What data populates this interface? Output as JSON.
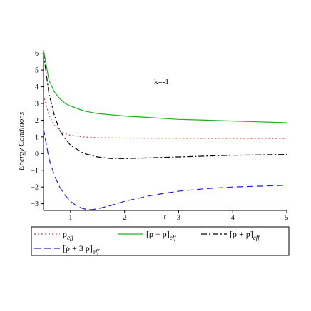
{
  "chart_data": {
    "type": "line",
    "title": "",
    "xlabel": "t",
    "ylabel": "Energy Conditions",
    "annotation": "k=-1",
    "xlim": [
      0.5,
      5
    ],
    "ylim": [
      -3.4,
      6.2
    ],
    "x_ticks": [
      1,
      2,
      3,
      4,
      5
    ],
    "y_ticks": [
      -3,
      -2,
      -1,
      0,
      1,
      2,
      3,
      4,
      5,
      6
    ],
    "grid": false,
    "legend_position": "bottom",
    "series": [
      {
        "name": "ρ_eff",
        "legend_main": "ρ",
        "legend_sub": "eff",
        "color": "#d04040",
        "dash": "dotted",
        "x": [
          0.5,
          0.6,
          0.7,
          0.8,
          0.9,
          1.0,
          1.25,
          1.5,
          2.0,
          2.5,
          3.0,
          3.5,
          4.0,
          4.5,
          5.0
        ],
        "y": [
          3.5,
          2.3,
          1.7,
          1.4,
          1.2,
          1.1,
          1.0,
          0.95,
          0.93,
          0.92,
          0.92,
          0.91,
          0.91,
          0.9,
          0.9
        ]
      },
      {
        "name": "[ρ − p]_eff",
        "legend_main": "[ρ − p]",
        "legend_sub": "eff",
        "color": "#20b020",
        "dash": "solid",
        "x": [
          0.5,
          0.6,
          0.7,
          0.8,
          0.9,
          1.0,
          1.25,
          1.5,
          2.0,
          2.5,
          3.0,
          3.5,
          4.0,
          4.5,
          5.0
        ],
        "y": [
          6.2,
          4.4,
          3.7,
          3.3,
          3.0,
          2.85,
          2.55,
          2.4,
          2.25,
          2.15,
          2.05,
          2.0,
          1.95,
          1.9,
          1.85
        ]
      },
      {
        "name": "[ρ + p]_eff",
        "legend_main": "[ρ + p]",
        "legend_sub": "eff",
        "color": "#000000",
        "dash": "dashdot",
        "x": [
          0.5,
          0.6,
          0.7,
          0.8,
          0.9,
          1.0,
          1.25,
          1.5,
          1.75,
          2.0,
          2.5,
          3.0,
          3.5,
          4.0,
          4.5,
          5.0
        ],
        "y": [
          6.0,
          3.6,
          2.3,
          1.4,
          0.9,
          0.5,
          0.0,
          -0.2,
          -0.3,
          -0.3,
          -0.25,
          -0.2,
          -0.15,
          -0.1,
          -0.08,
          -0.05
        ]
      },
      {
        "name": "[ρ + 3p]_eff",
        "legend_main": "[ρ + 3 p]",
        "legend_sub": "eff",
        "color": "#2020d0",
        "dash": "dashed",
        "x": [
          0.5,
          0.6,
          0.7,
          0.8,
          0.9,
          1.0,
          1.1,
          1.2,
          1.3,
          1.4,
          1.5,
          1.75,
          2.0,
          2.5,
          3.0,
          3.5,
          4.0,
          4.5,
          5.0
        ],
        "y": [
          1.5,
          -0.3,
          -1.3,
          -2.0,
          -2.5,
          -2.85,
          -3.1,
          -3.25,
          -3.35,
          -3.35,
          -3.3,
          -3.1,
          -2.85,
          -2.5,
          -2.25,
          -2.1,
          -2.0,
          -1.95,
          -1.9
        ]
      }
    ]
  }
}
